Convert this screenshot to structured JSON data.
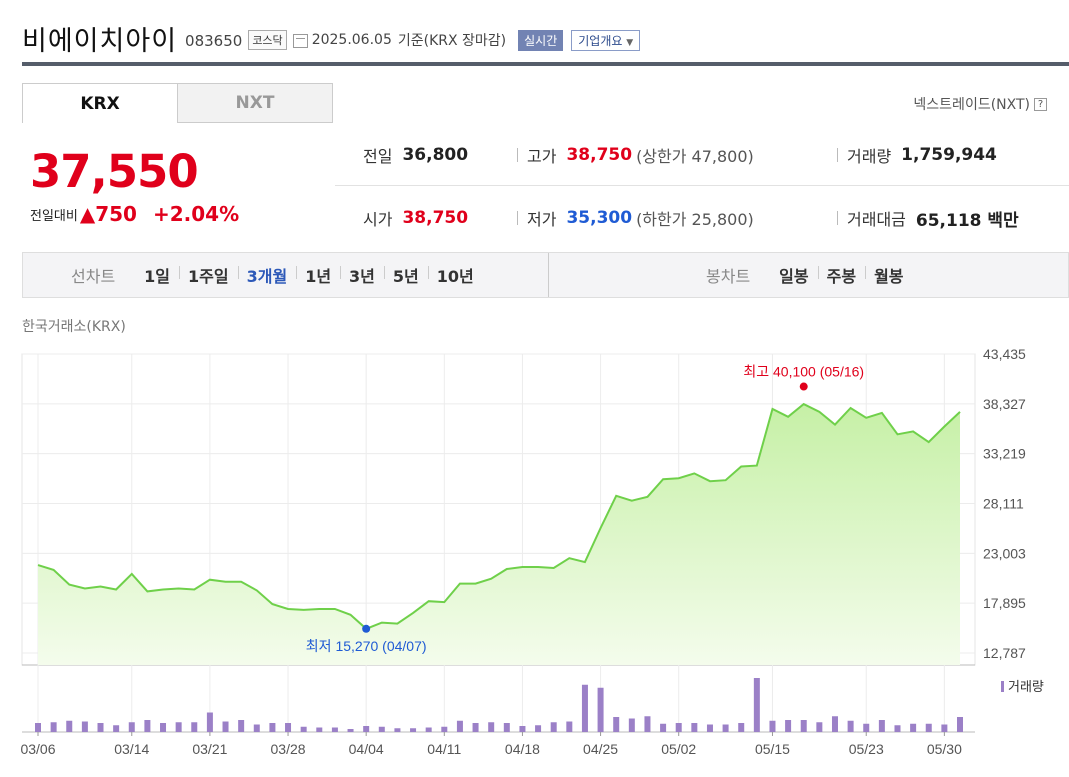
{
  "header": {
    "company_name": "비에이치아이",
    "code": "083650",
    "market_badge": "코스닥",
    "date": "2025.06.05",
    "basis": "기준(KRX 장마감)",
    "realtime_label": "실시간",
    "company_info_label": "기업개요"
  },
  "tabs": [
    {
      "label": "KRX",
      "active": true
    },
    {
      "label": "NXT",
      "active": false
    }
  ],
  "nxt_link": "넥스트레이드(NXT)",
  "price": {
    "current": "37,550",
    "diff_label": "전일대비",
    "diff_value": "▲750",
    "diff_pct": "+2.04%"
  },
  "quotes": {
    "prev_close_label": "전일",
    "prev_close": "36,800",
    "high_label": "고가",
    "high": "38,750",
    "upper_limit": "(상한가 47,800)",
    "volume_label": "거래량",
    "volume": "1,759,944",
    "open_label": "시가",
    "open": "38,750",
    "low_label": "저가",
    "low": "35,300",
    "lower_limit": "(하한가 25,800)",
    "amount_label": "거래대금",
    "amount": "65,118 백만"
  },
  "period_bar": {
    "line_label": "선차트",
    "line_options": [
      "1일",
      "1주일",
      "3개월",
      "1년",
      "3년",
      "5년",
      "10년"
    ],
    "active_line_option": "3개월",
    "candle_label": "봉차트",
    "candle_options": [
      "일봉",
      "주봉",
      "월봉"
    ]
  },
  "exchange_caption": "한국거래소(KRX)",
  "colors": {
    "up": "#e0001b",
    "down": "#1f5bd4",
    "line": "#6fd04a",
    "area_top": "#c6f0a6",
    "volume_bar": "#9b80c7",
    "active_period": "#2c58b8"
  },
  "chart_data": {
    "type": "area",
    "price_axis_ticks": [
      "43,435",
      "38,327",
      "33,219",
      "28,111",
      "23,003",
      "17,895",
      "12,787"
    ],
    "ylim": [
      12787,
      43435
    ],
    "x_tick_labels": [
      "03/06",
      "03/14",
      "03/21",
      "03/28",
      "04/04",
      "04/11",
      "04/18",
      "04/25",
      "05/02",
      "05/15",
      "05/23",
      "05/30"
    ],
    "high_annotation": "최고 40,100 (05/16)",
    "low_annotation": "최저 15,270 (04/07)",
    "volume_legend": "거래량",
    "series": [
      {
        "name": "거래량",
        "values": [
          1.2,
          1.3,
          1.5,
          1.4,
          1.2,
          0.9,
          1.3,
          1.6,
          1.2,
          1.3,
          1.3,
          2.6,
          1.4,
          1.6,
          1.0,
          1.2,
          1.2,
          0.7,
          0.6,
          0.6,
          0.4,
          0.8,
          0.7,
          0.5,
          0.5,
          0.6,
          0.7,
          1.5,
          1.2,
          1.3,
          1.2,
          0.8,
          0.9,
          1.3,
          1.4,
          6.3,
          5.9,
          2.0,
          1.8,
          2.1,
          1.1,
          1.2,
          1.2,
          1.0,
          1.0,
          1.2,
          7.2,
          1.5,
          1.6,
          1.6,
          1.3,
          2.1,
          1.5,
          1.1,
          1.6,
          0.9,
          1.1,
          1.1,
          1.0,
          2.0
        ]
      }
    ],
    "price": [
      21800,
      21300,
      19800,
      19400,
      19600,
      19300,
      20900,
      19100,
      19300,
      19400,
      19300,
      20300,
      20100,
      20100,
      19200,
      17800,
      17300,
      17200,
      17300,
      17300,
      16700,
      15270,
      15900,
      15800,
      16900,
      18100,
      18000,
      19900,
      19900,
      20400,
      21400,
      21600,
      21600,
      21500,
      22500,
      22100,
      25600,
      28900,
      28400,
      28800,
      30600,
      30700,
      31200,
      30400,
      30500,
      31900,
      32000,
      37800,
      37000,
      38300,
      37500,
      36200,
      37900,
      36900,
      37400,
      35200,
      35500,
      34400,
      36000,
      37500
    ]
  }
}
